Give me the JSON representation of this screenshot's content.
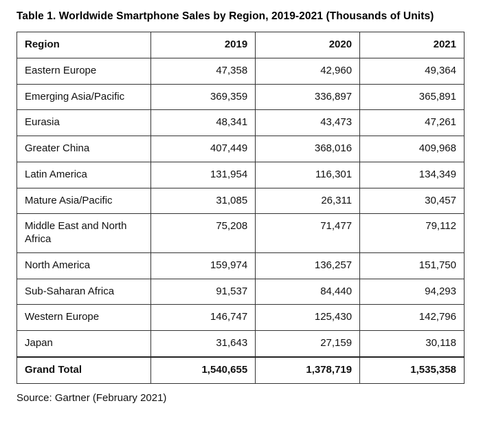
{
  "title": "Table 1. Worldwide Smartphone Sales by Region, 2019-2021 (Thousands of Units)",
  "source": "Source: Gartner (February 2021)",
  "table": {
    "headers": [
      "Region",
      "2019",
      "2020",
      "2021"
    ],
    "rows": [
      {
        "region": "Eastern Europe",
        "values": [
          "47,358",
          "42,960",
          "49,364"
        ]
      },
      {
        "region": "Emerging Asia/Pacific",
        "values": [
          "369,359",
          "336,897",
          "365,891"
        ]
      },
      {
        "region": "Eurasia",
        "values": [
          "48,341",
          "43,473",
          "47,261"
        ]
      },
      {
        "region": "Greater China",
        "values": [
          "407,449",
          "368,016",
          "409,968"
        ]
      },
      {
        "region": "Latin America",
        "values": [
          "131,954",
          "116,301",
          "134,349"
        ]
      },
      {
        "region": "Mature Asia/Pacific",
        "values": [
          "31,085",
          "26,311",
          "30,457"
        ]
      },
      {
        "region": "Middle East and North Africa",
        "values": [
          "75,208",
          "71,477",
          "79,112"
        ]
      },
      {
        "region": "North America",
        "values": [
          "159,974",
          "136,257",
          "151,750"
        ]
      },
      {
        "region": "Sub-Saharan Africa",
        "values": [
          "91,537",
          "84,440",
          "94,293"
        ]
      },
      {
        "region": "Western Europe",
        "values": [
          "146,747",
          "125,430",
          "142,796"
        ]
      },
      {
        "region": "Japan",
        "values": [
          "31,643",
          "27,159",
          "30,118"
        ]
      }
    ],
    "total": {
      "region": "Grand Total",
      "values": [
        "1,540,655",
        "1,378,719",
        "1,535,358"
      ]
    }
  },
  "chart_data": {
    "type": "table",
    "title": "Table 1. Worldwide Smartphone Sales by Region, 2019-2021 (Thousands of Units)",
    "columns": [
      "Region",
      "2019",
      "2020",
      "2021"
    ],
    "rows": [
      [
        "Eastern Europe",
        47358,
        42960,
        49364
      ],
      [
        "Emerging Asia/Pacific",
        369359,
        336897,
        365891
      ],
      [
        "Eurasia",
        48341,
        43473,
        47261
      ],
      [
        "Greater China",
        407449,
        368016,
        409968
      ],
      [
        "Latin America",
        131954,
        116301,
        134349
      ],
      [
        "Mature Asia/Pacific",
        31085,
        26311,
        30457
      ],
      [
        "Middle East and North Africa",
        75208,
        71477,
        79112
      ],
      [
        "North America",
        159974,
        136257,
        151750
      ],
      [
        "Sub-Saharan Africa",
        91537,
        84440,
        94293
      ],
      [
        "Western Europe",
        146747,
        125430,
        142796
      ],
      [
        "Japan",
        31643,
        27159,
        30118
      ],
      [
        "Grand Total",
        1540655,
        1378719,
        1535358
      ]
    ],
    "units": "Thousands of Units",
    "source": "Source: Gartner (February 2021)"
  }
}
